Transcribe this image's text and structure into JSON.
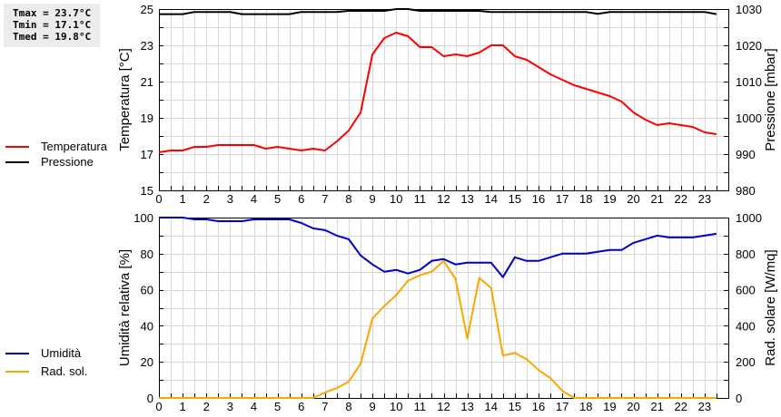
{
  "stats": {
    "tmax": "Tmax = 23.7°C",
    "tmin": "Tmin = 17.1°C",
    "tmed": "Tmed = 19.8°C"
  },
  "legend_top": [
    {
      "label": "Temperatura",
      "color": "#ff0000"
    },
    {
      "label": "Pressione",
      "color": "#000000"
    }
  ],
  "legend_bottom": [
    {
      "label": "Umidità",
      "color": "#0000cc"
    },
    {
      "label": "Rad. sol.",
      "color": "#ffa500"
    }
  ],
  "chart_data": [
    {
      "type": "line",
      "title": "",
      "xlabel": "",
      "ylabel": "Temperatura [°C]",
      "y2label": "Pressione [mbar]",
      "ylim": [
        15,
        25
      ],
      "y2lim": [
        980,
        1030
      ],
      "yticks": [
        15,
        17,
        19,
        21,
        23,
        25
      ],
      "y2ticks": [
        980,
        990,
        1000,
        1010,
        1020,
        1030
      ],
      "xticks": [
        0,
        1,
        2,
        3,
        4,
        5,
        6,
        7,
        8,
        9,
        10,
        11,
        12,
        13,
        14,
        15,
        16,
        17,
        18,
        19,
        20,
        21,
        22,
        23
      ],
      "xlim": [
        0,
        24
      ],
      "grid": true,
      "legend_position": "left",
      "x": [
        0,
        0.5,
        1,
        1.5,
        2,
        2.5,
        3,
        3.5,
        4,
        4.5,
        5,
        5.5,
        6,
        6.5,
        7,
        7.5,
        8,
        8.5,
        9,
        9.5,
        10,
        10.5,
        11,
        11.5,
        12,
        12.5,
        13,
        13.5,
        14,
        14.5,
        15,
        15.5,
        16,
        16.5,
        17,
        17.5,
        18,
        18.5,
        19,
        19.5,
        20,
        20.5,
        21,
        21.5,
        22,
        22.5,
        23,
        23.5
      ],
      "series": [
        {
          "name": "Temperatura",
          "axis": "left",
          "color": "#ff0000",
          "values": [
            17.1,
            17.2,
            17.2,
            17.4,
            17.4,
            17.5,
            17.5,
            17.5,
            17.5,
            17.3,
            17.4,
            17.3,
            17.2,
            17.3,
            17.2,
            17.7,
            18.3,
            19.3,
            22.5,
            23.4,
            23.7,
            23.5,
            22.9,
            22.9,
            22.4,
            22.5,
            22.4,
            22.6,
            23.0,
            23.0,
            22.4,
            22.2,
            21.8,
            21.4,
            21.1,
            20.8,
            20.6,
            20.4,
            20.2,
            19.9,
            19.3,
            18.9,
            18.6,
            18.7,
            18.6,
            18.5,
            18.2,
            18.1
          ]
        },
        {
          "name": "Pressione",
          "axis": "right",
          "color": "#000000",
          "values": [
            1028.6,
            1028.6,
            1028.6,
            1029.2,
            1029.2,
            1029.2,
            1029.2,
            1028.6,
            1028.6,
            1028.6,
            1028.6,
            1028.6,
            1029.2,
            1029.2,
            1029.2,
            1029.2,
            1029.5,
            1029.5,
            1029.5,
            1029.5,
            1030.0,
            1030.0,
            1029.5,
            1029.5,
            1029.5,
            1029.5,
            1029.5,
            1029.5,
            1029.2,
            1029.2,
            1029.2,
            1029.2,
            1029.2,
            1029.2,
            1029.2,
            1029.2,
            1029.2,
            1028.7,
            1029.2,
            1029.2,
            1029.2,
            1029.2,
            1029.2,
            1029.2,
            1029.2,
            1029.2,
            1029.2,
            1028.6
          ]
        }
      ]
    },
    {
      "type": "line",
      "title": "",
      "xlabel": "",
      "ylabel": "Umidità relativa [%]",
      "y2label": "Rad. solare [W/mq]",
      "ylim": [
        0,
        100
      ],
      "y2lim": [
        0,
        1000
      ],
      "yticks": [
        0,
        20,
        40,
        60,
        80,
        100
      ],
      "y2ticks": [
        0,
        200,
        400,
        600,
        800,
        1000
      ],
      "xticks": [
        0,
        1,
        2,
        3,
        4,
        5,
        6,
        7,
        8,
        9,
        10,
        11,
        12,
        13,
        14,
        15,
        16,
        17,
        18,
        19,
        20,
        21,
        22,
        23
      ],
      "xlim": [
        0,
        24
      ],
      "grid": true,
      "legend_position": "left",
      "x": [
        0,
        0.5,
        1,
        1.5,
        2,
        2.5,
        3,
        3.5,
        4,
        4.5,
        5,
        5.5,
        6,
        6.5,
        7,
        7.5,
        8,
        8.5,
        9,
        9.5,
        10,
        10.5,
        11,
        11.5,
        12,
        12.5,
        13,
        13.5,
        14,
        14.5,
        15,
        15.5,
        16,
        16.5,
        17,
        17.5,
        18,
        18.5,
        19,
        19.5,
        20,
        20.5,
        21,
        21.5,
        22,
        22.5,
        23,
        23.5
      ],
      "series": [
        {
          "name": "Umidità",
          "axis": "left",
          "color": "#0000cc",
          "values": [
            100,
            100,
            100,
            99,
            99,
            98,
            98,
            98,
            99,
            99,
            99,
            99,
            97,
            94,
            93,
            90,
            88,
            79,
            74,
            70,
            71,
            69,
            71,
            76,
            77,
            74,
            75,
            75,
            75,
            67,
            78,
            76,
            76,
            78,
            80,
            80,
            80,
            81,
            82,
            82,
            86,
            88,
            90,
            89,
            89,
            89,
            90,
            91
          ]
        },
        {
          "name": "Rad. sol.",
          "axis": "right",
          "color": "#ffa500",
          "values": [
            0,
            0,
            0,
            0,
            0,
            0,
            0,
            0,
            0,
            0,
            0,
            0,
            0,
            0,
            30,
            55,
            90,
            190,
            440,
            510,
            570,
            650,
            680,
            700,
            760,
            660,
            330,
            665,
            610,
            235,
            250,
            215,
            155,
            110,
            40,
            0,
            0,
            0,
            0,
            0,
            0,
            0,
            0,
            0,
            0,
            0,
            0,
            0
          ]
        }
      ]
    }
  ]
}
